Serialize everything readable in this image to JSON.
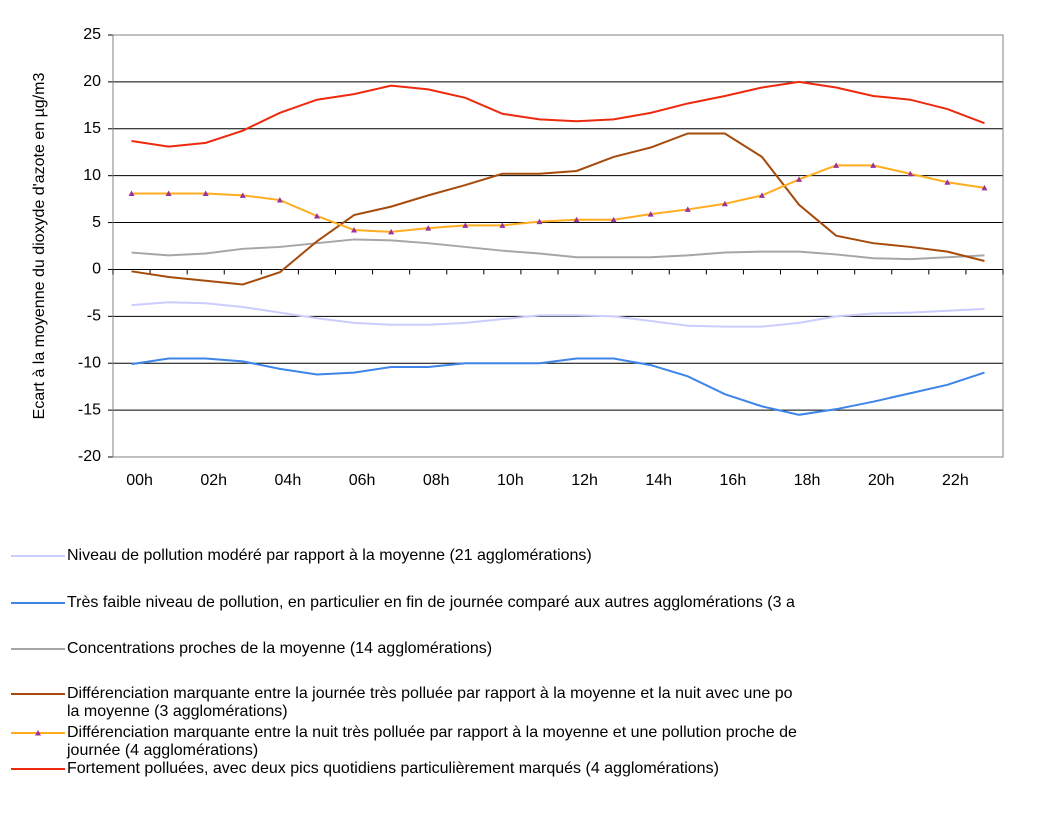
{
  "chart_data": {
    "type": "line",
    "y_label": "Ecart à la moyenne du dioxyde d'azote en µg/m3",
    "categories": [
      "00h",
      null,
      "02h",
      null,
      "04h",
      null,
      "06h",
      null,
      "08h",
      null,
      "10h",
      null,
      "12h",
      null,
      "14h",
      null,
      "16h",
      null,
      "18h",
      null,
      "20h",
      null,
      "22h",
      null
    ],
    "ylim": [
      -20,
      25
    ],
    "yticks": [
      -20,
      -15,
      -10,
      -5,
      0,
      5,
      10,
      15,
      20,
      25
    ],
    "grid": true,
    "series": [
      {
        "name": "Niveau de pollution modéré par rapport à la moyenne (21 agglomérations)",
        "color": "#ccccff",
        "values": [
          -3.8,
          -3.5,
          -3.6,
          -4,
          -4.6,
          -5.2,
          -5.7,
          -5.9,
          -5.9,
          -5.7,
          -5.3,
          -4.9,
          -4.9,
          -5,
          -5.5,
          -6,
          -6.1,
          -6.1,
          -5.7,
          -5,
          -4.7,
          -4.6,
          -4.4,
          -4.2
        ]
      },
      {
        "name": "Très faible niveau de pollution, en particulier en fin de journée comparé aux autres agglomérations (3 a",
        "color": "#3d85e8",
        "values": [
          -10.1,
          -9.5,
          -9.5,
          -9.8,
          -10.6,
          -11.2,
          -11,
          -10.4,
          -10.4,
          -10,
          -10,
          -10,
          -9.5,
          -9.5,
          -10.2,
          -11.4,
          -13.3,
          -14.6,
          -15.5,
          -14.9,
          -14.1,
          -13.2,
          -12.3,
          -11
        ]
      },
      {
        "name": "Concentrations proches de la moyenne (14 agglomérations)",
        "color": "#a6a6a6",
        "values": [
          1.8,
          1.5,
          1.7,
          2.2,
          2.4,
          2.8,
          3.2,
          3.1,
          2.8,
          2.4,
          2,
          1.7,
          1.3,
          1.3,
          1.3,
          1.5,
          1.8,
          1.9,
          1.9,
          1.6,
          1.2,
          1.1,
          1.3,
          1.5
        ]
      },
      {
        "name": "Différenciation marquante entre la journée très polluée par rapport à la moyenne et la nuit avec une po\nla moyenne (3 agglomérations)",
        "color": "#a64b0c",
        "values": [
          -0.2,
          -0.8,
          -1.2,
          -1.6,
          -0.3,
          3,
          5.8,
          6.7,
          7.9,
          9,
          10.2,
          10.2,
          10.5,
          12,
          13,
          14.5,
          14.5,
          12,
          6.9,
          3.6,
          2.8,
          2.4,
          1.9,
          0.9
        ]
      },
      {
        "name": "Différenciation marquante entre la nuit très polluée par rapport à la moyenne et une pollution proche de\njournée (4 agglomérations)",
        "color": "#ffad1f",
        "marker": "triangle",
        "marker_color": "#993399",
        "values": [
          8.1,
          8.1,
          8.1,
          7.9,
          7.4,
          5.7,
          4.2,
          4,
          4.4,
          4.7,
          4.7,
          5.1,
          5.3,
          5.3,
          5.9,
          6.4,
          7,
          7.9,
          9.6,
          11.1,
          11.1,
          10.2,
          9.3,
          8.7
        ]
      },
      {
        "name": "Fortement polluées, avec deux pics quotidiens particulièrement marqués (4 agglomérations)",
        "color": "#ee2a0e",
        "values": [
          13.7,
          13.1,
          13.5,
          14.8,
          16.7,
          18.1,
          18.7,
          19.6,
          19.2,
          18.3,
          16.6,
          16,
          15.8,
          16,
          16.7,
          17.7,
          18.5,
          19.4,
          20,
          19.4,
          18.5,
          18.1,
          17.1,
          15.6
        ]
      }
    ]
  }
}
